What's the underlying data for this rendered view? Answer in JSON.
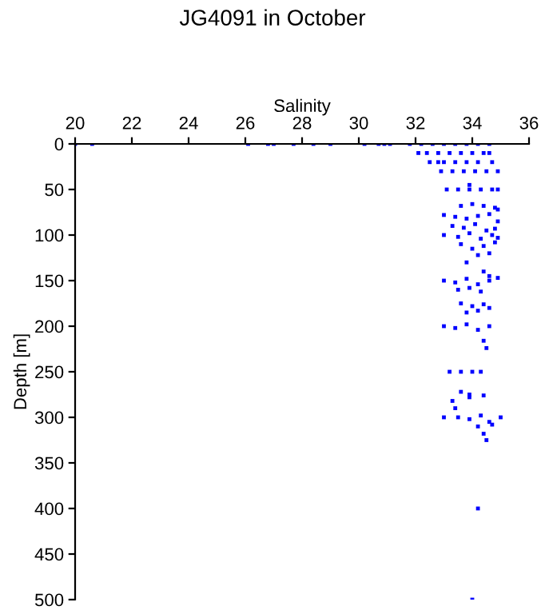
{
  "chart_data": {
    "type": "scatter",
    "title": "JG4091 in October",
    "xlabel": "Salinity",
    "ylabel": "Depth [m]",
    "xlim": [
      20,
      36
    ],
    "xticks": [
      20,
      22,
      24,
      26,
      28,
      30,
      32,
      34,
      36
    ],
    "ylim": [
      500,
      0
    ],
    "yticks": [
      0,
      50,
      100,
      150,
      200,
      250,
      300,
      350,
      400,
      450,
      500
    ],
    "marker": "square",
    "grid": false,
    "legend": false,
    "series": [
      {
        "color": "#0000ff",
        "x": [
          20.0,
          20.6,
          26.1,
          26.8,
          27.0,
          27.7,
          28.4,
          29.0,
          30.2,
          30.7,
          30.9,
          31.1,
          31.8,
          32.2,
          32.6,
          33.0,
          33.4,
          33.8,
          34.2,
          34.6,
          32.1,
          32.4,
          32.8,
          33.2,
          33.6,
          34.0,
          34.4,
          34.6,
          32.5,
          32.8,
          33.0,
          33.4,
          33.8,
          34.2,
          34.7,
          32.9,
          33.3,
          33.7,
          34.1,
          34.5,
          34.9,
          33.1,
          33.5,
          33.9,
          34.3,
          34.7,
          34.9,
          33.9,
          33.6,
          34.0,
          34.4,
          34.8,
          34.9,
          33.0,
          33.4,
          33.8,
          34.2,
          34.6,
          34.9,
          33.3,
          33.7,
          34.1,
          34.5,
          34.8,
          33.0,
          33.5,
          33.9,
          34.3,
          34.7,
          34.9,
          33.6,
          34.0,
          34.4,
          34.8,
          34.2,
          34.6,
          33.8,
          34.4,
          33.0,
          33.4,
          33.8,
          34.2,
          34.6,
          34.9,
          33.5,
          33.9,
          34.3,
          34.6,
          33.6,
          34.0,
          34.4,
          33.8,
          34.2,
          34.6,
          33.0,
          33.4,
          33.8,
          34.2,
          34.6,
          34.4,
          34.5,
          33.2,
          33.6,
          34.0,
          34.3,
          33.6,
          33.9,
          33.3,
          33.9,
          33.4,
          34.4,
          33.0,
          33.5,
          33.9,
          34.3,
          34.6,
          35.0,
          34.2,
          34.7,
          34.4,
          34.5,
          34.2,
          34.0
        ],
        "values": [
          0,
          0,
          0,
          0,
          0,
          0,
          0,
          0,
          0,
          0,
          0,
          0,
          0,
          0,
          0,
          0,
          0,
          0,
          0,
          0,
          10,
          10,
          10,
          10,
          10,
          10,
          10,
          10,
          20,
          20,
          20,
          20,
          20,
          20,
          20,
          30,
          30,
          30,
          30,
          30,
          30,
          50,
          50,
          50,
          50,
          50,
          50,
          45,
          68,
          66,
          68,
          70,
          72,
          78,
          80,
          82,
          79,
          77,
          85,
          90,
          92,
          88,
          95,
          93,
          100,
          102,
          98,
          104,
          100,
          103,
          110,
          115,
          112,
          108,
          122,
          120,
          130,
          140,
          150,
          152,
          148,
          154,
          150,
          147,
          160,
          158,
          162,
          145,
          175,
          178,
          176,
          185,
          183,
          180,
          200,
          202,
          198,
          204,
          200,
          216,
          224,
          250,
          250,
          250,
          250,
          272,
          275,
          282,
          278,
          290,
          276,
          300,
          300,
          302,
          298,
          305,
          300,
          310,
          308,
          318,
          325,
          400,
          500
        ]
      }
    ]
  }
}
